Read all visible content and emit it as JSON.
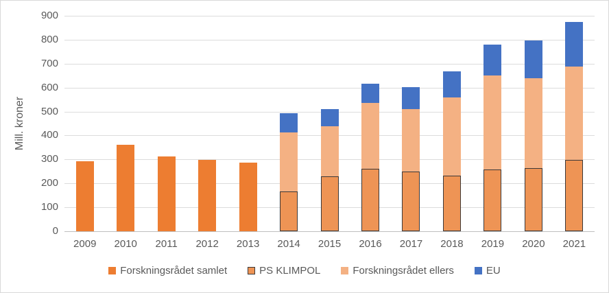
{
  "chart_data": {
    "type": "bar",
    "stacked": true,
    "ylabel": "Mill. kroner",
    "ylim": [
      0,
      900
    ],
    "ytick_step": 100,
    "yticks": [
      0,
      100,
      200,
      300,
      400,
      500,
      600,
      700,
      800,
      900
    ],
    "grid": true,
    "legend_position": "bottom",
    "categories": [
      "2009",
      "2010",
      "2011",
      "2012",
      "2013",
      "2014",
      "2015",
      "2016",
      "2017",
      "2018",
      "2019",
      "2020",
      "2021"
    ],
    "series": [
      {
        "name": "Forskningsrådet samlet",
        "color": "#ED7D31",
        "values": [
          293,
          361,
          313,
          298,
          287,
          0,
          0,
          0,
          0,
          0,
          0,
          0,
          0
        ]
      },
      {
        "name": "PS KLIMPOL",
        "color": "#EE9455",
        "border_color": "#3B3838",
        "values": [
          0,
          0,
          0,
          0,
          0,
          166,
          230,
          262,
          249,
          231,
          257,
          263,
          299
        ]
      },
      {
        "name": "Forskningsrådet ellers",
        "color": "#F4B183",
        "values": [
          0,
          0,
          0,
          0,
          0,
          247,
          209,
          273,
          260,
          329,
          393,
          377,
          390
        ]
      },
      {
        "name": "EU",
        "color": "#4472C4",
        "values": [
          0,
          0,
          0,
          0,
          0,
          80,
          70,
          81,
          92,
          109,
          130,
          158,
          186
        ]
      }
    ],
    "colors": {
      "gridline": "#DCDCDC",
      "axis_line": "#BFBFBF",
      "text": "#595959",
      "frame_border": "#D9D9D9"
    }
  }
}
